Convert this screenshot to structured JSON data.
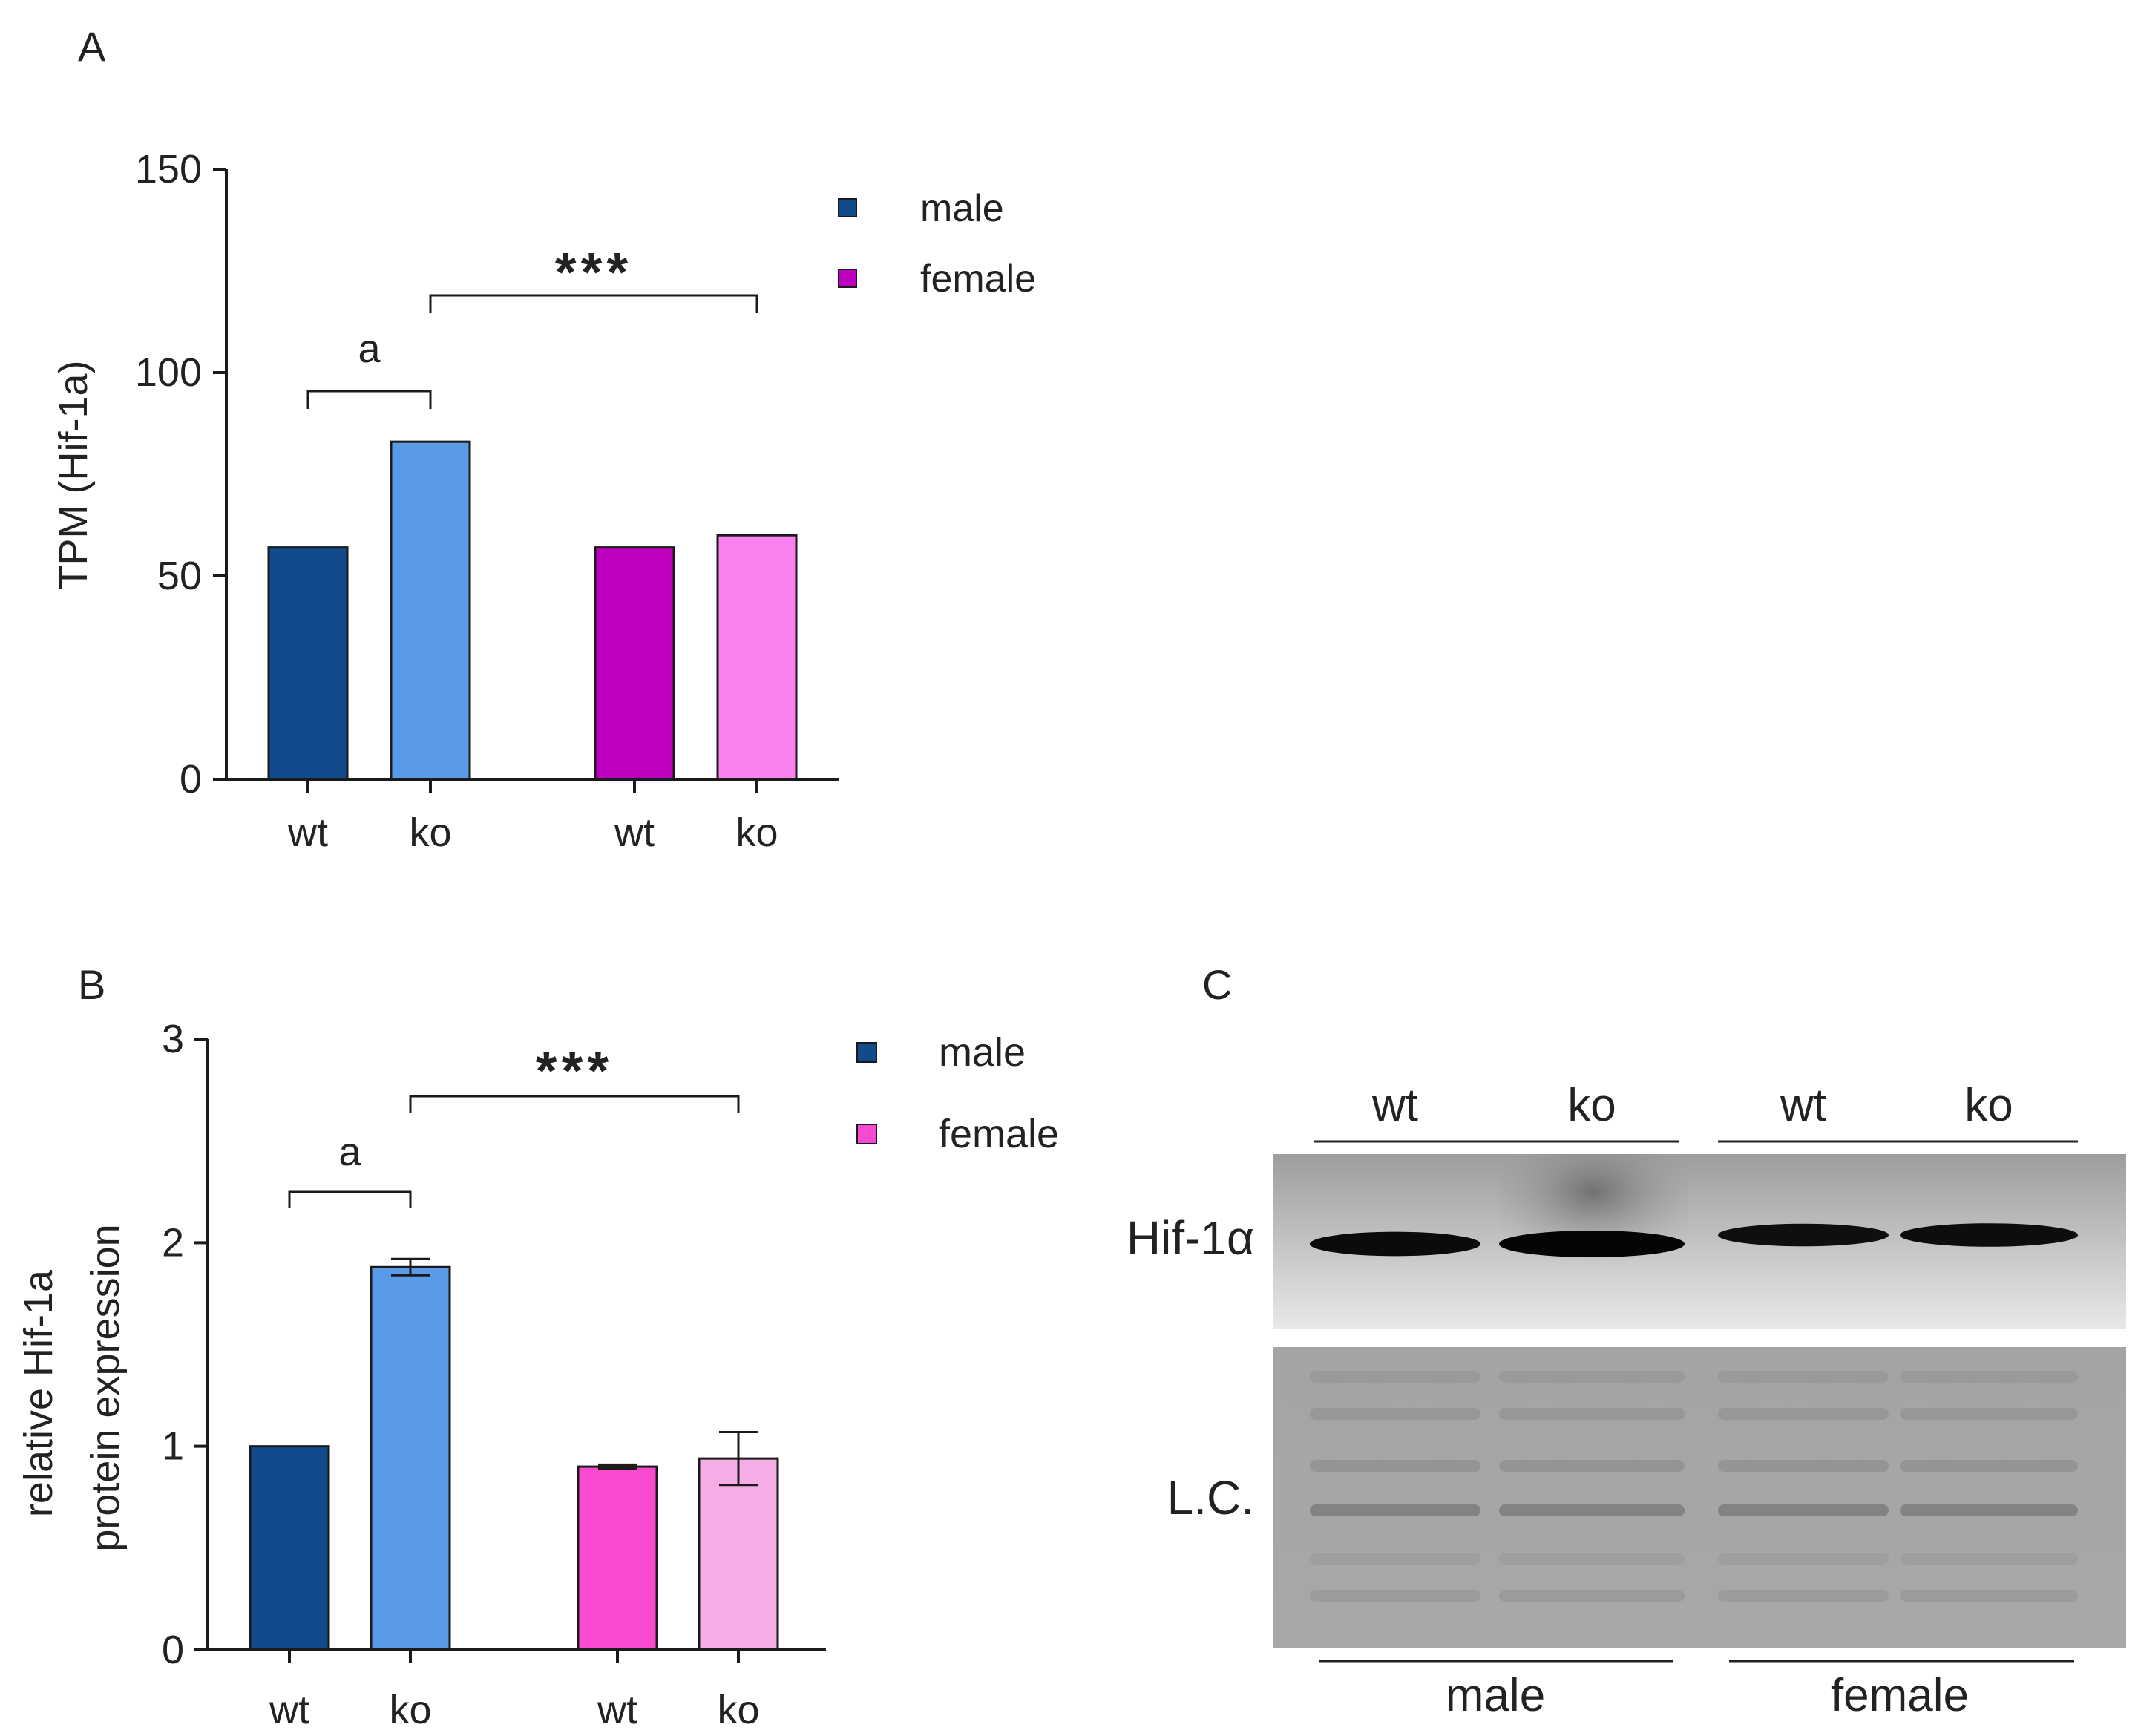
{
  "panel_labels": {
    "a": "A",
    "b": "B",
    "c": "C"
  },
  "chart_data": [
    {
      "id": "A",
      "type": "bar",
      "ylabel": "TPM (Hif-1a)",
      "ylim": [
        0,
        150
      ],
      "yticks": [
        "0",
        "50",
        "100",
        "150"
      ],
      "ytick_values": [
        0,
        50,
        100,
        150
      ],
      "categories": [
        "wt",
        "ko",
        "wt",
        "ko"
      ],
      "groups": [
        "male",
        "male",
        "female",
        "female"
      ],
      "values": [
        57,
        83,
        57,
        60
      ],
      "errors": [
        0,
        0,
        0,
        0
      ],
      "colors": [
        "#124a8c",
        "#5a9be8",
        "#c000c0",
        "#f982ee"
      ],
      "legend": [
        {
          "name": "male",
          "color": "#124a8c"
        },
        {
          "name": "female",
          "color": "#c000c0"
        }
      ],
      "legend_position": "top-right",
      "annotations": [
        {
          "text": "a",
          "from": 0,
          "to": 1
        },
        {
          "text": "***",
          "from": 1,
          "to": 3
        }
      ]
    },
    {
      "id": "B",
      "type": "bar",
      "ylabel": [
        "relative Hif-1a",
        "protein expression"
      ],
      "ylim": [
        0,
        3
      ],
      "yticks": [
        "0",
        "1",
        "2",
        "3"
      ],
      "ytick_values": [
        0,
        1,
        2,
        3
      ],
      "categories": [
        "wt",
        "ko",
        "wt",
        "ko"
      ],
      "groups": [
        "male",
        "male",
        "female",
        "female"
      ],
      "values": [
        1.0,
        1.88,
        0.9,
        0.94
      ],
      "errors": [
        0,
        0.04,
        0.01,
        0.13
      ],
      "colors": [
        "#124a8c",
        "#5a9be8",
        "#f74ad0",
        "#f6ade6"
      ],
      "legend": [
        {
          "name": "male",
          "color": "#124a8c"
        },
        {
          "name": "female",
          "color": "#f74ad0"
        }
      ],
      "legend_position": "top-right",
      "annotations": [
        {
          "text": "a",
          "from": 0,
          "to": 1
        },
        {
          "text": "***",
          "from": 1,
          "to": 3
        }
      ]
    }
  ],
  "blot": {
    "lanes": [
      "wt",
      "ko",
      "wt",
      "ko"
    ],
    "row_labels": [
      "Hif-1α",
      "L.C."
    ],
    "groups": [
      "male",
      "female"
    ],
    "band_intensity": [
      0.85,
      1.0,
      0.75,
      0.8
    ]
  }
}
